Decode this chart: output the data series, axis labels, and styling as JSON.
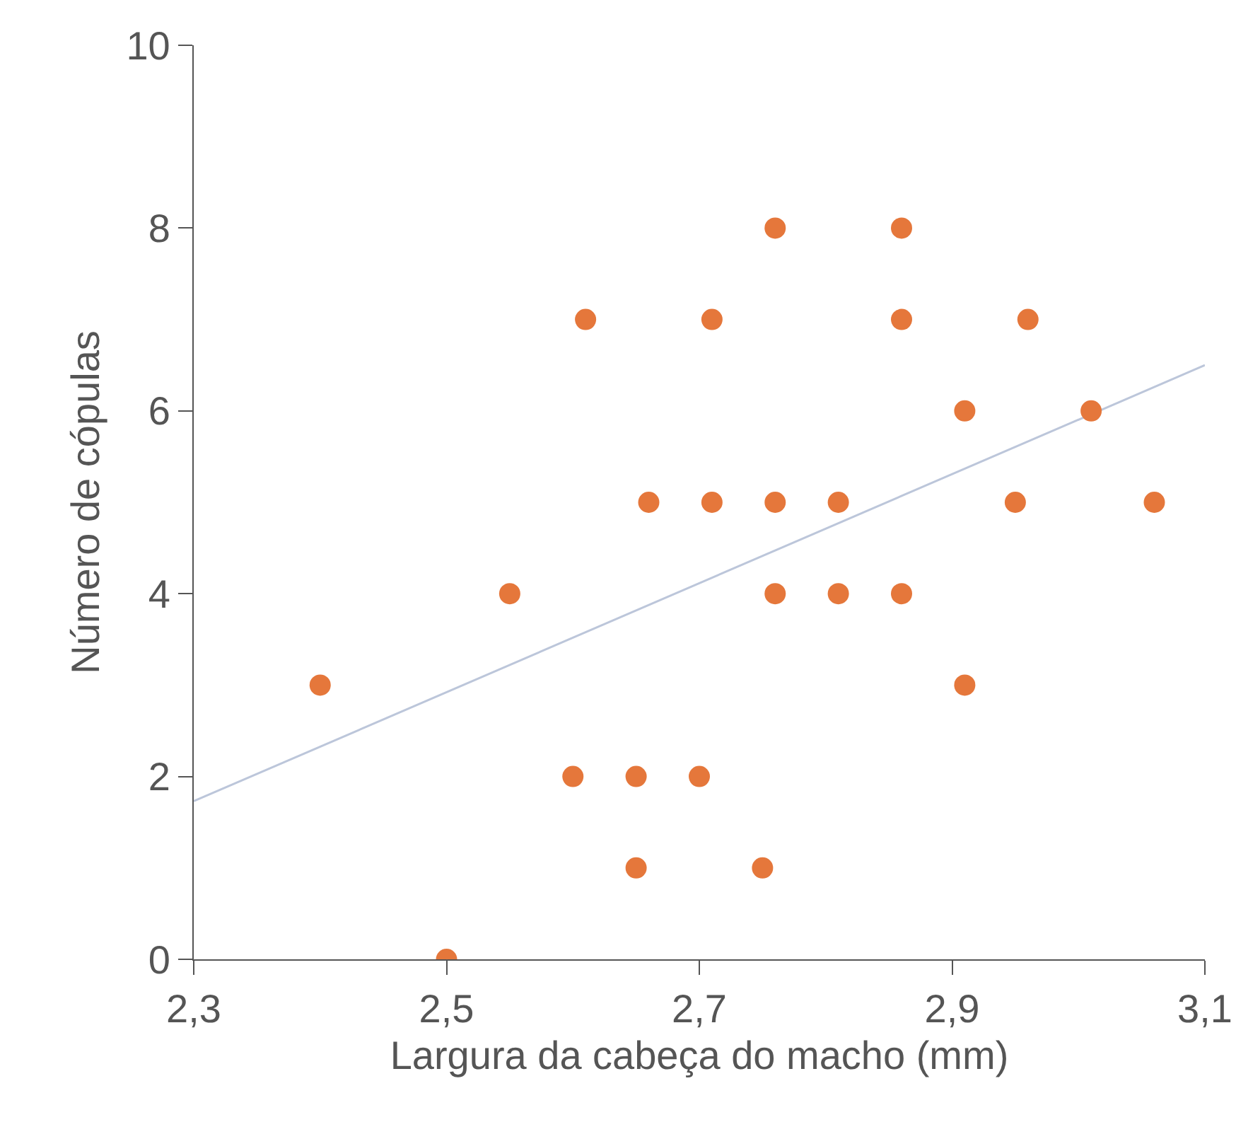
{
  "chart_data": {
    "type": "scatter",
    "xlabel": "Largura da cabeça do macho (mm)",
    "ylabel": "Número de cópulas",
    "xlim": [
      2.3,
      3.1
    ],
    "ylim": [
      0,
      10
    ],
    "xticks": [
      {
        "value": 2.3,
        "label": "2,3"
      },
      {
        "value": 2.5,
        "label": "2,5"
      },
      {
        "value": 2.7,
        "label": "2,7"
      },
      {
        "value": 2.9,
        "label": "2,9"
      },
      {
        "value": 3.1,
        "label": "3,1"
      }
    ],
    "yticks": [
      0,
      2,
      4,
      6,
      8,
      10
    ],
    "grid": false,
    "series": [
      {
        "marker": "circle",
        "color": "#e5773b",
        "x": [
          2.4,
          2.5,
          2.55,
          2.61,
          2.6,
          2.66,
          2.65,
          2.65,
          2.71,
          2.71,
          2.7,
          2.76,
          2.76,
          2.76,
          2.75,
          2.81,
          2.81,
          2.86,
          2.86,
          2.86,
          2.91,
          2.91,
          2.96,
          2.95,
          3.01,
          3.06
        ],
        "values": [
          3,
          0,
          4,
          7,
          2,
          5,
          2,
          1,
          7,
          5,
          2,
          8,
          5,
          4,
          1,
          5,
          4,
          8,
          7,
          4,
          6,
          3,
          7,
          5,
          6,
          5
        ]
      },
      {
        "type": "line",
        "color": "#bcc6da",
        "x": [
          2.3,
          3.1
        ],
        "values": [
          1.73,
          6.5
        ]
      }
    ]
  }
}
